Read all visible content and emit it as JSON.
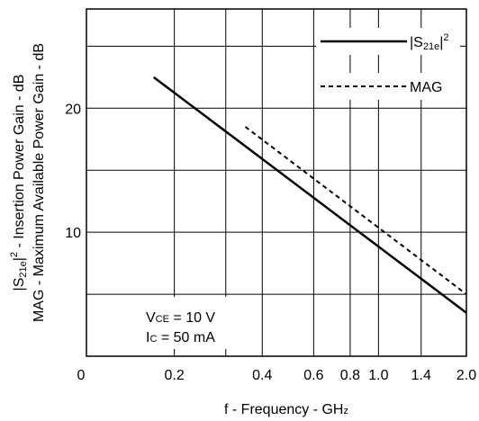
{
  "chart_data": {
    "type": "line",
    "xlabel": {
      "main": "f - Frequency - GH",
      "small": "z"
    },
    "ylabel_line1": {
      "pre": "|S",
      "sub": "21e",
      "post": "|",
      "sup": "2",
      "rest": " - Insertion Power Gain - dB"
    },
    "ylabel_line2": "MAG - Maximum Available Power Gain - dB",
    "x_scale": "log",
    "xlim": [
      0.1,
      2.0
    ],
    "ylim": [
      0,
      28
    ],
    "y_ticks": [
      "10",
      "20"
    ],
    "x_ticks": [
      "0",
      "0.2",
      "0.4",
      "0.6",
      "0.8",
      "1.0",
      "1.4",
      "2.0"
    ],
    "grid": true,
    "series": [
      {
        "key": "s21",
        "legend": {
          "pre": "|S",
          "sub": "21e",
          "post": "|",
          "sup": "2"
        },
        "style": "solid",
        "x": [
          0.17,
          2.0
        ],
        "y": [
          22.5,
          3.5
        ]
      },
      {
        "key": "mag",
        "legend": {
          "text": "MAG"
        },
        "style": "dashed",
        "x": [
          0.35,
          2.0
        ],
        "y": [
          18.5,
          5.0
        ]
      }
    ],
    "legend_position": "top-right",
    "annotation": {
      "line1": {
        "pre": "V",
        "sub": "CE",
        "post": " = 10 V"
      },
      "line2": {
        "pre": "I",
        "sub": "C",
        "post": " = 50 mA"
      }
    }
  }
}
